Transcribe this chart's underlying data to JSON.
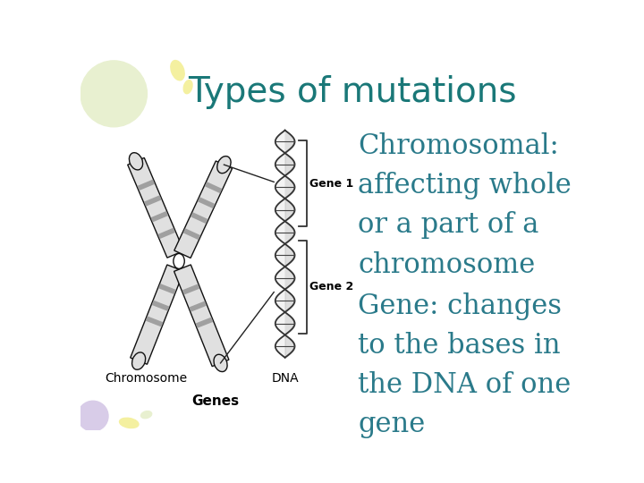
{
  "title": "Types of mutations",
  "title_color": "#1a7878",
  "title_fontsize": 28,
  "bg_color": "#ffffff",
  "text1": "Chromosomal:\naffecting whole\nor a part of a\nchromosome",
  "text2": "Gene: changes\nto the bases in\nthe DNA of one\ngene",
  "text_color": "#2a7a8a",
  "text_fontsize": 22,
  "gene1_label": "Gene 1",
  "gene2_label": "Gene 2",
  "chrom_label": "Chromosome",
  "dna_label": "DNA",
  "genes_label": "Genes",
  "label_color": "#000000",
  "label_fontsize": 9,
  "genes_fontsize": 11,
  "deco_green": "#e8f0d0",
  "deco_yellow": "#f4f0a0",
  "deco_purple": "#d8cce8",
  "chrom_light": "#d8d8d8",
  "chrom_dark": "#888888",
  "chrom_black": "#111111"
}
